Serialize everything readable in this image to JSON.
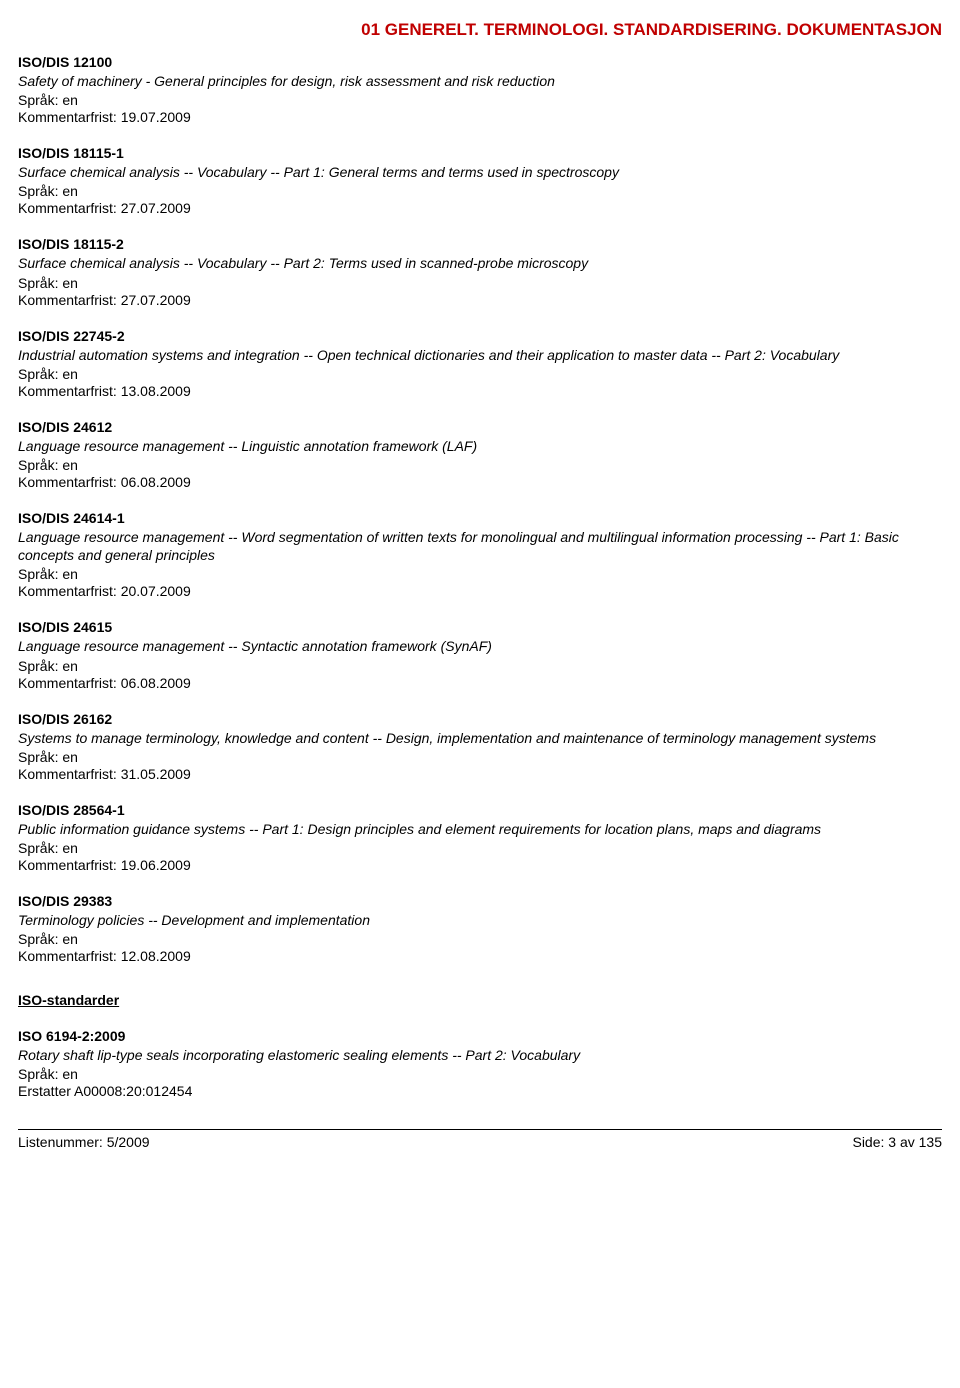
{
  "header": "01  GENERELT. TERMINOLOGI. STANDARDISERING. DOKUMENTASJON",
  "labels": {
    "sprak": "Språk:",
    "kommentarfrist": "Kommentarfrist:",
    "erstatter": "Erstatter"
  },
  "entries": [
    {
      "code": "ISO/DIS 12100",
      "desc": "Safety of machinery - General principles for design, risk assessment and risk reduction",
      "sprak": "en",
      "frist": "19.07.2009"
    },
    {
      "code": "ISO/DIS 18115-1",
      "desc": "Surface chemical analysis -- Vocabulary -- Part 1: General terms and terms used in spectroscopy",
      "sprak": "en",
      "frist": "27.07.2009"
    },
    {
      "code": "ISO/DIS 18115-2",
      "desc": "Surface chemical analysis -- Vocabulary -- Part 2: Terms used in scanned-probe microscopy",
      "sprak": "en",
      "frist": "27.07.2009"
    },
    {
      "code": "ISO/DIS 22745-2",
      "desc": "Industrial automation systems and integration -- Open technical dictionaries and their application to master data -- Part 2: Vocabulary",
      "sprak": "en",
      "frist": "13.08.2009"
    },
    {
      "code": "ISO/DIS 24612",
      "desc": "Language resource management -- Linguistic annotation framework (LAF)",
      "sprak": "en",
      "frist": "06.08.2009"
    },
    {
      "code": "ISO/DIS 24614-1",
      "desc": "Language resource management -- Word segmentation of written texts for monolingual and multilingual information processing -- Part 1: Basic concepts and general principles",
      "sprak": "en",
      "frist": "20.07.2009"
    },
    {
      "code": "ISO/DIS 24615",
      "desc": "Language resource management -- Syntactic annotation framework (SynAF)",
      "sprak": "en",
      "frist": "06.08.2009"
    },
    {
      "code": "ISO/DIS 26162",
      "desc": "Systems to manage terminology, knowledge and content  -- Design, implementation and maintenance of terminology management systems",
      "sprak": "en",
      "frist": "31.05.2009"
    },
    {
      "code": "ISO/DIS 28564-1",
      "desc": "Public information guidance systems -- Part 1: Design principles and element requirements for location plans, maps and diagrams",
      "sprak": "en",
      "frist": "19.06.2009"
    },
    {
      "code": "ISO/DIS 29383",
      "desc": "Terminology policies -- Development and implementation",
      "sprak": "en",
      "frist": "12.08.2009"
    }
  ],
  "section2_header": "ISO-standarder",
  "entries2": [
    {
      "code": "ISO 6194-2:2009",
      "desc": "Rotary shaft lip-type seals incorporating elastomeric sealing elements -- Part 2: Vocabulary",
      "sprak": "en",
      "erstatter": "A00008:20:012454"
    }
  ],
  "footer": {
    "left": "Listenummer: 5/2009",
    "right": "Side: 3 av 135"
  }
}
